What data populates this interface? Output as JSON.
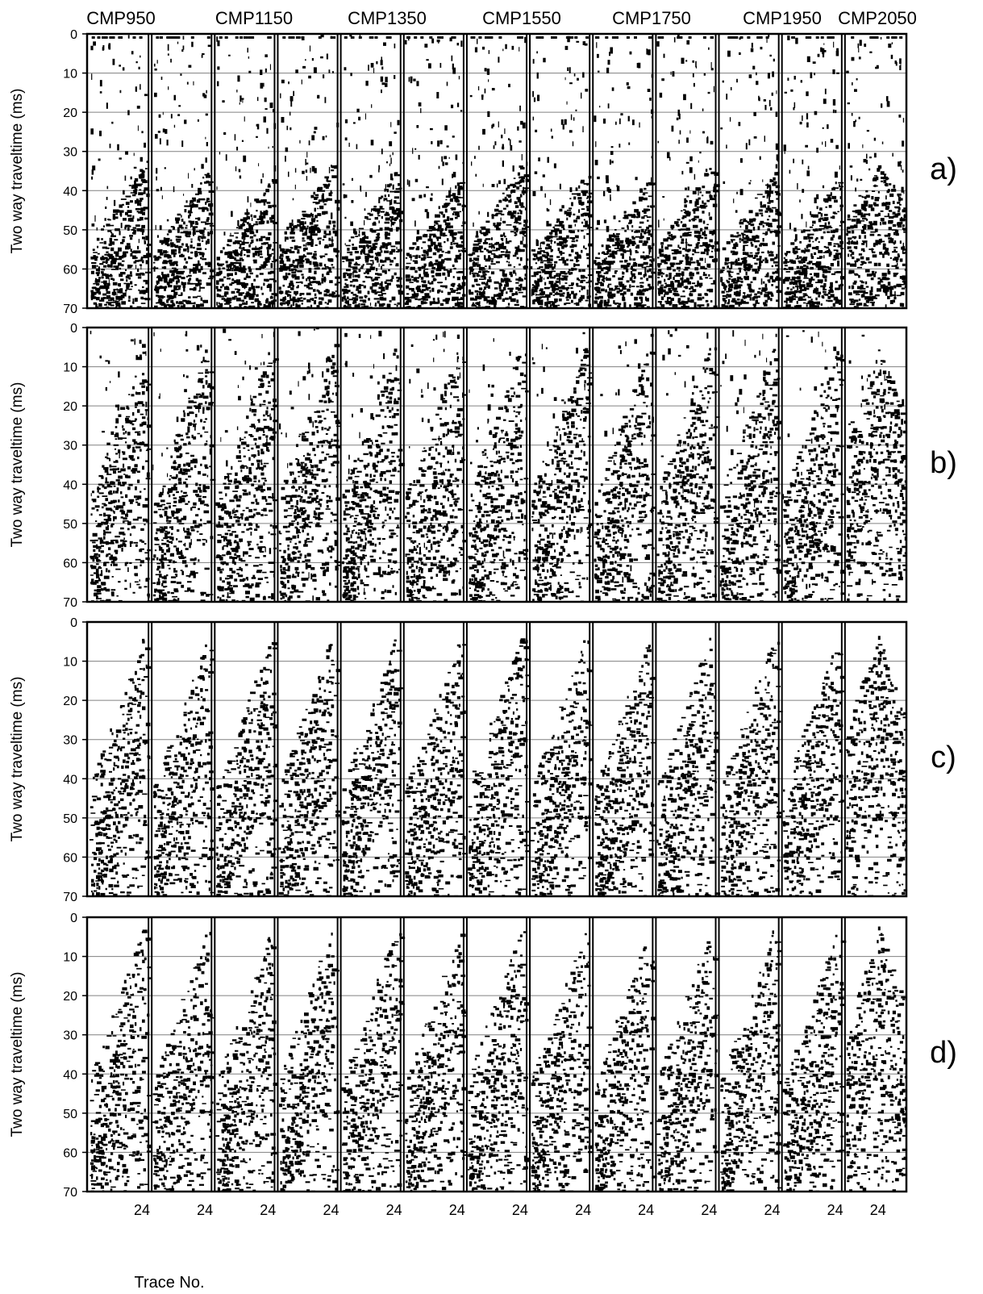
{
  "chart_data": {
    "type": "seismic_gather_panels",
    "cmp_labels": [
      "CMP950",
      "CMP1150",
      "CMP1350",
      "CMP1550",
      "CMP1750",
      "CMP1950",
      "CMP2050"
    ],
    "ylabel": "Two way traveltime (ms)",
    "xlabel": "Trace No.",
    "y_ticks": [
      0,
      10,
      20,
      30,
      40,
      50,
      60,
      70
    ],
    "ylim": [
      0,
      70
    ],
    "x_tick_label": "24",
    "gathers_per_panel": 13,
    "panels": [
      {
        "label": "a)",
        "first_arrival_apex_ms": 33,
        "noise_level": 0.75
      },
      {
        "label": "b)",
        "first_arrival_apex_ms": 4,
        "noise_level": 0.45
      },
      {
        "label": "c)",
        "first_arrival_apex_ms": 3,
        "noise_level": 0.0
      },
      {
        "label": "d)",
        "first_arrival_apex_ms": 2,
        "noise_level": 0.0
      }
    ],
    "grid": true,
    "colors": {
      "ink": "#000000",
      "grid": "#808080",
      "background": "#ffffff"
    }
  }
}
